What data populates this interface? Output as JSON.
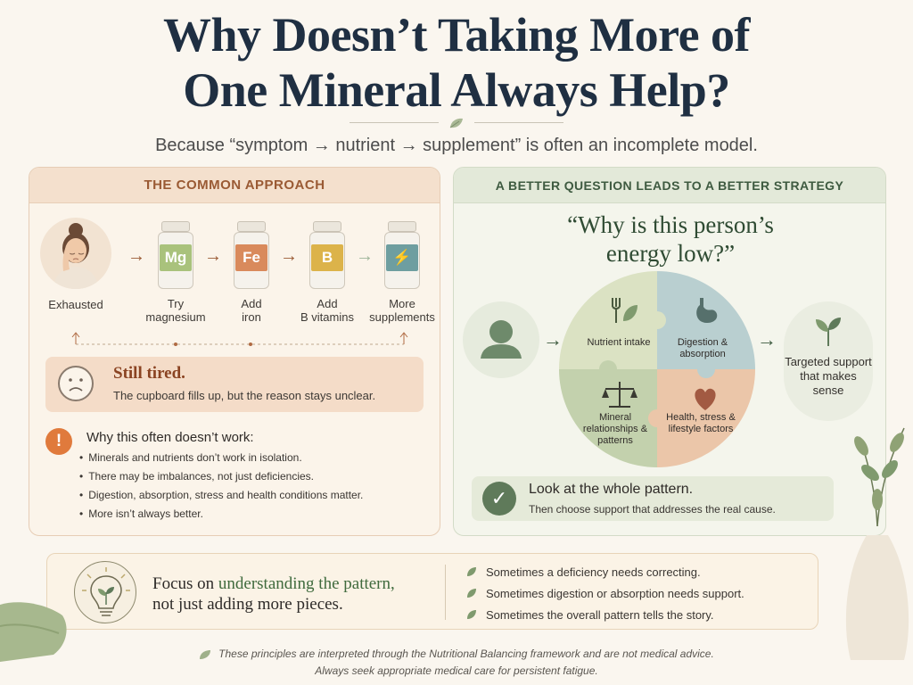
{
  "header": {
    "title_line1": "Why Doesn’t Taking More of",
    "title_line2": "One Mineral Always Help?",
    "subtitle": "Because “symptom → nutrient → supplement” is often an incomplete model."
  },
  "left_panel": {
    "heading": "THE COMMON APPROACH",
    "flow": [
      {
        "label": "Exhausted",
        "type": "person"
      },
      {
        "label1": "Try",
        "label2": "magnesium",
        "symbol": "Mg",
        "color": "#a9c27c"
      },
      {
        "label1": "Add",
        "label2": "iron",
        "symbol": "Fe",
        "color": "#d98a5c"
      },
      {
        "label1": "Add",
        "label2": "B vitamins",
        "symbol": "B",
        "color": "#dcb34a"
      },
      {
        "label1": "More",
        "label2": "supplements",
        "symbol": "⚡",
        "color": "#6e9ea0"
      }
    ],
    "still": {
      "title": "Still tired.",
      "text": "The cupboard fills up, but the reason stays unclear."
    },
    "why": {
      "title": "Why this often doesn’t work:",
      "items": [
        "Minerals and nutrients don’t work in isolation.",
        "There may be imbalances, not just deficiencies.",
        "Digestion, absorption, stress and health conditions matter.",
        "More isn’t always better."
      ]
    }
  },
  "right_panel": {
    "heading": "A BETTER QUESTION LEADS TO A BETTER STRATEGY",
    "question_line1": "“Why is this person’s",
    "question_line2": "energy low?”",
    "quadrants": {
      "nutrient": "Nutrient intake",
      "digestion": "Digestion & absorption",
      "mineral": "Mineral relationships & patterns",
      "health": "Health, stress & lifestyle factors"
    },
    "target": "Targeted support that makes sense",
    "look": {
      "title": "Look at the whole pattern.",
      "text": "Then choose support that addresses the real cause."
    }
  },
  "bottom": {
    "focus_pre": "Focus on ",
    "focus_highlight": "understanding the pattern,",
    "focus_line2": "not just adding more pieces.",
    "bullets": [
      "Sometimes a deficiency needs correcting.",
      "Sometimes digestion or absorption needs support.",
      "Sometimes the overall pattern tells the story."
    ]
  },
  "footer": {
    "line1": "These principles are interpreted through the Nutritional Balancing framework and are not medical advice.",
    "line2": "Always seek appropriate medical care for persistent fatigue."
  }
}
